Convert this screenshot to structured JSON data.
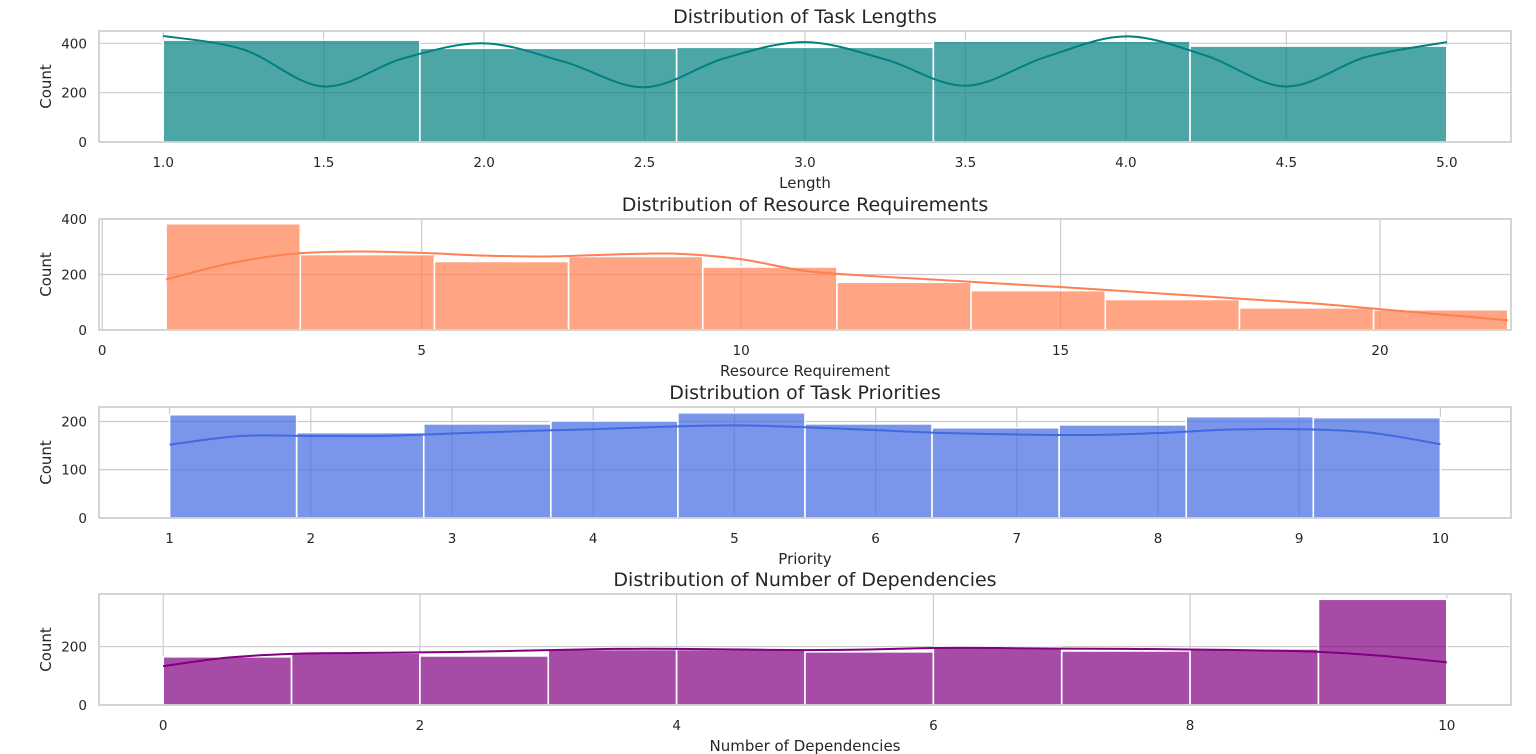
{
  "chart_data": [
    {
      "type": "histogram",
      "title": "Distribution of Task Lengths",
      "xlabel": "Length",
      "ylabel": "Count",
      "color": "#008080",
      "xlim": [
        0.8,
        5.2
      ],
      "ylim": [
        0,
        450
      ],
      "xticks": [
        1.0,
        1.5,
        2.0,
        2.5,
        3.0,
        3.5,
        4.0,
        4.5,
        5.0
      ],
      "xtick_labels": [
        "1.0",
        "1.5",
        "2.0",
        "2.5",
        "3.0",
        "3.5",
        "4.0",
        "4.5",
        "5.0"
      ],
      "yticks": [
        0,
        200,
        400
      ],
      "ytick_labels": [
        "0",
        "200",
        "400"
      ],
      "bins": [
        {
          "x0": 1.0,
          "x1": 1.8,
          "count": 413
        },
        {
          "x0": 1.8,
          "x1": 2.6,
          "count": 380
        },
        {
          "x0": 2.6,
          "x1": 3.4,
          "count": 384
        },
        {
          "x0": 3.4,
          "x1": 4.2,
          "count": 409
        },
        {
          "x0": 4.2,
          "x1": 5.0,
          "count": 389
        }
      ],
      "kde": {
        "x": [
          1.0,
          1.25,
          1.5,
          1.75,
          2.0,
          2.25,
          2.5,
          2.75,
          3.0,
          3.25,
          3.5,
          3.75,
          4.0,
          4.25,
          4.5,
          4.75,
          5.0
        ],
        "y": [
          430,
          375,
          225,
          340,
          400,
          325,
          222,
          340,
          405,
          335,
          228,
          345,
          428,
          350,
          225,
          345,
          405
        ]
      }
    },
    {
      "type": "histogram",
      "title": "Distribution of Resource Requirements",
      "xlabel": "Resource Requirement",
      "ylabel": "Count",
      "color": "#ff7f50",
      "xlim": [
        -0.05,
        22.05
      ],
      "ylim": [
        0,
        400
      ],
      "xticks": [
        0,
        5,
        10,
        15,
        20
      ],
      "xtick_labels": [
        "0",
        "5",
        "10",
        "15",
        "20"
      ],
      "yticks": [
        0,
        200,
        400
      ],
      "ytick_labels": [
        "0",
        "200",
        "400"
      ],
      "bins": [
        {
          "x0": 1.0,
          "x1": 3.1,
          "count": 383
        },
        {
          "x0": 3.1,
          "x1": 5.2,
          "count": 272
        },
        {
          "x0": 5.2,
          "x1": 7.3,
          "count": 247
        },
        {
          "x0": 7.3,
          "x1": 9.4,
          "count": 265
        },
        {
          "x0": 9.4,
          "x1": 11.5,
          "count": 227
        },
        {
          "x0": 11.5,
          "x1": 13.6,
          "count": 172
        },
        {
          "x0": 13.6,
          "x1": 15.7,
          "count": 142
        },
        {
          "x0": 15.7,
          "x1": 17.8,
          "count": 110
        },
        {
          "x0": 17.8,
          "x1": 19.9,
          "count": 80
        },
        {
          "x0": 19.9,
          "x1": 22.0,
          "count": 73
        }
      ],
      "kde": {
        "x": [
          1,
          2,
          3,
          4,
          5,
          6,
          7,
          8,
          9,
          10,
          11,
          12,
          13,
          14,
          15,
          16,
          17,
          18,
          19,
          20,
          21,
          22
        ],
        "y": [
          182,
          240,
          275,
          283,
          278,
          268,
          265,
          272,
          275,
          255,
          213,
          195,
          182,
          168,
          155,
          140,
          125,
          110,
          95,
          75,
          55,
          35
        ]
      }
    },
    {
      "type": "histogram",
      "title": "Distribution of Task Priorities",
      "xlabel": "Priority",
      "ylabel": "Count",
      "color": "#4169e1",
      "xlim": [
        0.5,
        10.5
      ],
      "ylim": [
        0,
        230
      ],
      "xticks": [
        1,
        2,
        3,
        4,
        5,
        6,
        7,
        8,
        9,
        10
      ],
      "xtick_labels": [
        "1",
        "2",
        "3",
        "4",
        "5",
        "6",
        "7",
        "8",
        "9",
        "10"
      ],
      "yticks": [
        0,
        100,
        200
      ],
      "ytick_labels": [
        "0",
        "100",
        "200"
      ],
      "bins": [
        {
          "x0": 1.0,
          "x1": 1.9,
          "count": 214
        },
        {
          "x0": 1.9,
          "x1": 2.8,
          "count": 177
        },
        {
          "x0": 2.8,
          "x1": 3.7,
          "count": 195
        },
        {
          "x0": 3.7,
          "x1": 4.6,
          "count": 201
        },
        {
          "x0": 4.6,
          "x1": 5.5,
          "count": 218
        },
        {
          "x0": 5.5,
          "x1": 6.4,
          "count": 195
        },
        {
          "x0": 6.4,
          "x1": 7.3,
          "count": 187
        },
        {
          "x0": 7.3,
          "x1": 8.2,
          "count": 193
        },
        {
          "x0": 8.2,
          "x1": 9.1,
          "count": 210
        },
        {
          "x0": 9.1,
          "x1": 10.0,
          "count": 208
        }
      ],
      "kde": {
        "x": [
          1.0,
          1.5,
          2.0,
          2.5,
          3.0,
          3.5,
          4.0,
          4.5,
          5.0,
          5.5,
          6.0,
          6.5,
          7.0,
          7.5,
          8.0,
          8.5,
          9.0,
          9.5,
          10.0
        ],
        "y": [
          152,
          170,
          170,
          170,
          175,
          180,
          184,
          189,
          192,
          188,
          182,
          176,
          173,
          172,
          176,
          183,
          184,
          177,
          153
        ]
      }
    },
    {
      "type": "histogram",
      "title": "Distribution of Number of Dependencies",
      "xlabel": "Number of Dependencies",
      "ylabel": "Count",
      "color": "#800080",
      "xlim": [
        -0.5,
        10.5
      ],
      "ylim": [
        0,
        380
      ],
      "xticks": [
        0,
        2,
        4,
        6,
        8,
        10
      ],
      "xtick_labels": [
        "0",
        "2",
        "4",
        "6",
        "8",
        "10"
      ],
      "yticks": [
        0,
        200
      ],
      "ytick_labels": [
        "0",
        "200"
      ],
      "bins": [
        {
          "x0": 0,
          "x1": 1,
          "count": 165
        },
        {
          "x0": 1,
          "x1": 2,
          "count": 178
        },
        {
          "x0": 2,
          "x1": 3,
          "count": 168
        },
        {
          "x0": 3,
          "x1": 4,
          "count": 190
        },
        {
          "x0": 4,
          "x1": 5,
          "count": 190
        },
        {
          "x0": 5,
          "x1": 6,
          "count": 182
        },
        {
          "x0": 6,
          "x1": 7,
          "count": 198
        },
        {
          "x0": 7,
          "x1": 8,
          "count": 185
        },
        {
          "x0": 8,
          "x1": 9,
          "count": 192
        },
        {
          "x0": 9,
          "x1": 10,
          "count": 362
        }
      ],
      "kde": {
        "x": [
          0,
          0.5,
          1,
          1.5,
          2,
          2.5,
          3,
          3.5,
          4,
          4.5,
          5,
          5.5,
          6,
          6.5,
          7,
          7.5,
          8,
          8.5,
          9,
          9.5,
          10
        ],
        "y": [
          133,
          162,
          175,
          178,
          180,
          183,
          188,
          192,
          192,
          190,
          188,
          190,
          195,
          195,
          193,
          192,
          190,
          187,
          182,
          168,
          146
        ]
      }
    }
  ]
}
